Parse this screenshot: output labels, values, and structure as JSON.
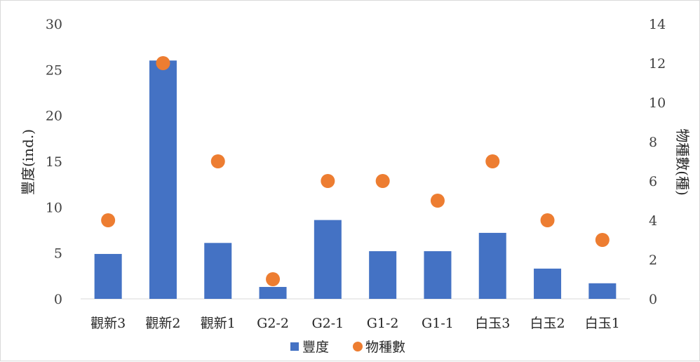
{
  "chart_data": {
    "type": "bar",
    "categories": [
      "觀新3",
      "觀新2",
      "觀新1",
      "G2-2",
      "G2-1",
      "G1-2",
      "G1-1",
      "白玉3",
      "白玉2",
      "白玉1"
    ],
    "series": [
      {
        "name": "豐度",
        "kind": "bar",
        "axis": "left",
        "color": "#4472c4",
        "values": [
          4.9,
          26,
          6.1,
          1.3,
          8.6,
          5.2,
          5.2,
          7.2,
          3.3,
          1.7
        ]
      },
      {
        "name": "物種數",
        "kind": "scatter",
        "axis": "right",
        "color": "#ed7d31",
        "values": [
          4,
          12,
          7,
          1,
          6,
          6,
          5,
          7,
          4,
          3
        ]
      }
    ],
    "ylabel": "豐度(ind.)",
    "y2label": "物種數(種)",
    "ylim": [
      0,
      30
    ],
    "y2lim": [
      0,
      14
    ],
    "yticks": [
      "0",
      "5",
      "10",
      "15",
      "20",
      "25",
      "30"
    ],
    "y2ticks": [
      "0",
      "2",
      "4",
      "6",
      "8",
      "10",
      "12",
      "14"
    ],
    "grid": false,
    "legend_position": "bottom"
  }
}
